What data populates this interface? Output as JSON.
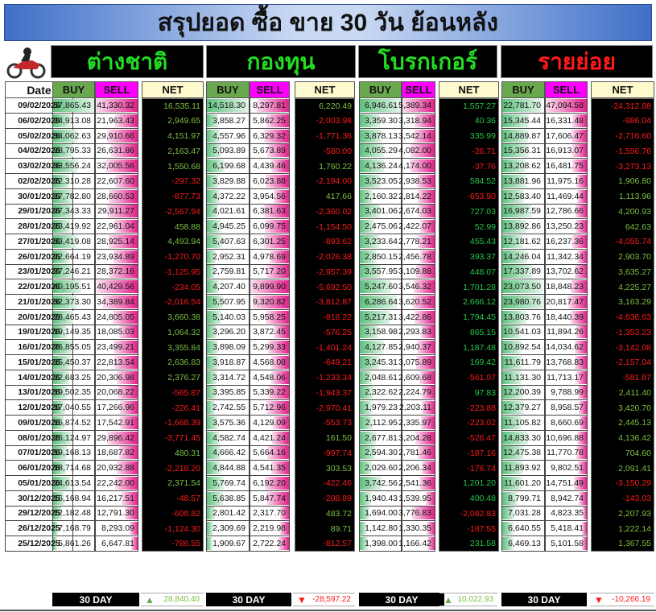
{
  "title": "สรุปยอด ซื้อ ขาย 30 วัน ย้อนหลัง",
  "groups": [
    {
      "label": "ต่างชาติ",
      "color": "#22dd22"
    },
    {
      "label": "กองทุน",
      "color": "#22dd22"
    },
    {
      "label": "โบรกเกอร์",
      "color": "#22dd22"
    },
    {
      "label": "รายย่อย",
      "color": "#ff1a1a"
    }
  ],
  "columns": {
    "date": "Date",
    "buy": "BUY",
    "sell": "SELL",
    "net": "NET"
  },
  "colors": {
    "positive": "#7cc043",
    "positive_broker": "#22c84a",
    "negative": "#ff1a1a"
  },
  "rows": [
    [
      "09/02/2026",
      "57,865.43",
      "41,330.32",
      "16,535.11",
      "14,518.30",
      "8,297.81",
      "6,220.49",
      "6,946.61",
      "5,389.34",
      "1,557.27",
      "22,781.70",
      "47,094.58",
      "-24,312.88"
    ],
    [
      "06/02/2026",
      "24,913.08",
      "21,963.43",
      "2,949.65",
      "3,858.27",
      "5,862.25",
      "-2,003.98",
      "3,359.30",
      "3,318.94",
      "40.36",
      "15,345.44",
      "16,331.48",
      "-986.04"
    ],
    [
      "05/02/2026",
      "34,062.63",
      "29,910.66",
      "4,151.97",
      "4,557.96",
      "6,329.32",
      "-1,771.36",
      "3,878.13",
      "3,542.14",
      "335.99",
      "14,889.87",
      "17,606.47",
      "-2,716.60"
    ],
    [
      "04/02/2026",
      "28,795.33",
      "26,631.86",
      "2,163.47",
      "5,093.89",
      "5,673.89",
      "-580.00",
      "4,055.29",
      "4,082.00",
      "-26.71",
      "15,356.31",
      "16,913.07",
      "-1,556.76"
    ],
    [
      "03/02/2026",
      "33,556.24",
      "32,005.56",
      "1,550.68",
      "6,199.68",
      "4,439.46",
      "1,760.22",
      "4,136.24",
      "4,174.00",
      "-37.76",
      "13,208.62",
      "16,481.75",
      "-3,273.13"
    ],
    [
      "02/02/2026",
      "22,310.28",
      "22,607.60",
      "-297.32",
      "3,829.88",
      "6,023.88",
      "-2,194.00",
      "3,523.05",
      "2,938.53",
      "584.52",
      "13,881.96",
      "11,975.16",
      "1,906.80"
    ],
    [
      "30/01/2026",
      "27,782.80",
      "28,660.53",
      "-877.73",
      "4,372.22",
      "3,954.56",
      "417.66",
      "2,160.32",
      "2,814.22",
      "-653.90",
      "12,583.40",
      "11,469.44",
      "1,113.96"
    ],
    [
      "29/01/2026",
      "27,343.33",
      "29,911.27",
      "-2,567.94",
      "4,021.61",
      "6,381.63",
      "-2,360.02",
      "3,401.06",
      "2,674.03",
      "727.03",
      "16,987.59",
      "12,786.66",
      "4,200.93"
    ],
    [
      "28/01/2026",
      "23,419.92",
      "22,961.04",
      "458.88",
      "4,945.25",
      "6,099.75",
      "-1,154.50",
      "2,475.06",
      "2,422.07",
      "52.99",
      "13,892.86",
      "13,250.23",
      "642.63"
    ],
    [
      "27/01/2026",
      "33,419.08",
      "28,925.14",
      "4,493.94",
      "5,407.63",
      "6,301.25",
      "-893.62",
      "3,233.64",
      "2,778.21",
      "455.43",
      "12,181.62",
      "16,237.36",
      "-4,055.74"
    ],
    [
      "26/01/2026",
      "22,664.19",
      "23,934.89",
      "-1,270.70",
      "2,952.31",
      "4,978.69",
      "-2,026.38",
      "2,850.15",
      "2,456.78",
      "393.37",
      "14,246.04",
      "11,342.34",
      "2,903.70"
    ],
    [
      "23/01/2026",
      "27,246.21",
      "28,372.16",
      "-1,125.95",
      "2,759.81",
      "5,717.20",
      "-2,957.39",
      "3,557.95",
      "3,109.88",
      "448.07",
      "17,337.89",
      "13,702.62",
      "3,635.27"
    ],
    [
      "22/01/2026",
      "40,195.51",
      "40,429.56",
      "-234.05",
      "4,207.40",
      "9,899.90",
      "-5,692.50",
      "5,247.60",
      "3,546.32",
      "1,701.28",
      "23,073.50",
      "18,848.23",
      "4,225.27"
    ],
    [
      "21/01/2026",
      "32,373.30",
      "34,389.84",
      "-2,016.54",
      "5,507.95",
      "9,320.82",
      "-3,812.87",
      "6,286.64",
      "3,620.52",
      "2,666.12",
      "23,980.76",
      "20,817.47",
      "3,163.29"
    ],
    [
      "20/01/2026",
      "28,465.43",
      "24,805.05",
      "3,660.38",
      "5,140.03",
      "5,958.25",
      "-818.22",
      "5,217.31",
      "3,422.86",
      "1,794.45",
      "13,803.76",
      "18,440.39",
      "-4,636.63"
    ],
    [
      "19/01/2026",
      "19,149.35",
      "18,085.03",
      "1,064.32",
      "3,296.20",
      "3,872.45",
      "-576.25",
      "3,158.98",
      "2,293.83",
      "865.15",
      "10,541.03",
      "11,894.26",
      "-1,353.23"
    ],
    [
      "16/01/2026",
      "26,855.05",
      "23,499.21",
      "3,355.84",
      "3,898.09",
      "5,299.33",
      "-1,401.24",
      "4,127.85",
      "2,940.37",
      "1,187.48",
      "10,892.54",
      "14,034.62",
      "-3,142.08"
    ],
    [
      "15/01/2026",
      "25,450.37",
      "22,813.54",
      "2,636.83",
      "3,918.87",
      "4,568.08",
      "-649.21",
      "3,245.31",
      "3,075.89",
      "169.42",
      "11,611.79",
      "13,768.83",
      "-2,157.04"
    ],
    [
      "14/01/2026",
      "22,683.25",
      "20,306.98",
      "2,376.27",
      "3,314.72",
      "4,548.06",
      "-1,233.34",
      "2,048.61",
      "2,609.68",
      "-561.07",
      "11,131.30",
      "11,713.17",
      "-581.87"
    ],
    [
      "13/01/2026",
      "19,502.35",
      "20,068.22",
      "-565.87",
      "3,395.85",
      "5,339.22",
      "-1,943.37",
      "2,322.62",
      "2,224.79",
      "97.83",
      "12,200.39",
      "9,788.99",
      "2,411.40"
    ],
    [
      "12/01/2026",
      "17,040.55",
      "17,266.96",
      "-226.41",
      "2,742.55",
      "5,712.96",
      "-2,970.41",
      "1,979.23",
      "2,203.11",
      "-223.88",
      "12,379.27",
      "8,958.57",
      "3,420.70"
    ],
    [
      "09/01/2026",
      "15,874.52",
      "17,542.91",
      "-1,668.39",
      "3,575.36",
      "4,129.09",
      "-553.73",
      "2,112.95",
      "2,335.97",
      "-223.02",
      "11,105.82",
      "8,660.69",
      "2,445.13"
    ],
    [
      "08/01/2026",
      "26,124.97",
      "29,896.42",
      "-3,771.45",
      "4,582.74",
      "4,421.24",
      "161.50",
      "2,677.81",
      "3,204.28",
      "-526.47",
      "14,833.30",
      "10,696.88",
      "4,136.42"
    ],
    [
      "07/01/2026",
      "19,168.13",
      "18,687.82",
      "480.31",
      "4,666.42",
      "5,664.16",
      "-997.74",
      "2,594.30",
      "2,781.46",
      "-187.16",
      "12,475.38",
      "11,770.78",
      "704.60"
    ],
    [
      "06/01/2026",
      "18,714.68",
      "20,932.88",
      "-2,218.20",
      "4,844.88",
      "4,541.35",
      "303.53",
      "2,029.60",
      "2,206.34",
      "-176.74",
      "11,893.92",
      "9,802.51",
      "2,091.41"
    ],
    [
      "05/01/2026",
      "24,613.54",
      "22,242.00",
      "2,371.54",
      "5,769.74",
      "6,192.20",
      "-422.46",
      "3,742.56",
      "2,541.36",
      "1,201.20",
      "11,601.20",
      "14,751.49",
      "-3,150.29"
    ],
    [
      "30/12/2025",
      "16,168.94",
      "16,217.51",
      "-48.57",
      "5,638.85",
      "5,847.74",
      "-208.89",
      "1,940.43",
      "1,539.95",
      "400.48",
      "8,799.71",
      "8,942.74",
      "-143.03"
    ],
    [
      "29/12/2025",
      "12,182.48",
      "12,791.30",
      "-608.82",
      "2,801.42",
      "2,317.70",
      "483.72",
      "1,694.00",
      "3,776.83",
      "-2,082.83",
      "7,031.28",
      "4,823.35",
      "2,207.93"
    ],
    [
      "26/12/2025",
      "7,168.79",
      "8,293.09",
      "-1,124.30",
      "2,309.69",
      "2,219.98",
      "89.71",
      "1,142.80",
      "1,330.35",
      "-187.55",
      "6,640.55",
      "5,418.41",
      "1,222.14"
    ],
    [
      "25/12/2025",
      "5,861.26",
      "6,647.81",
      "-786.55",
      "1,909.67",
      "2,722.24",
      "-812.57",
      "1,398.00",
      "1,166.42",
      "231.58",
      "6,469.13",
      "5,101.58",
      "1,367.55"
    ]
  ],
  "summary": {
    "label": "30 DAY",
    "items": [
      {
        "value": "28,840.40",
        "trend": "up"
      },
      {
        "value": "-28,597.22",
        "trend": "down"
      },
      {
        "value": "10,022.93",
        "trend": "up"
      },
      {
        "value": "-10,266.19",
        "trend": "down"
      }
    ]
  }
}
